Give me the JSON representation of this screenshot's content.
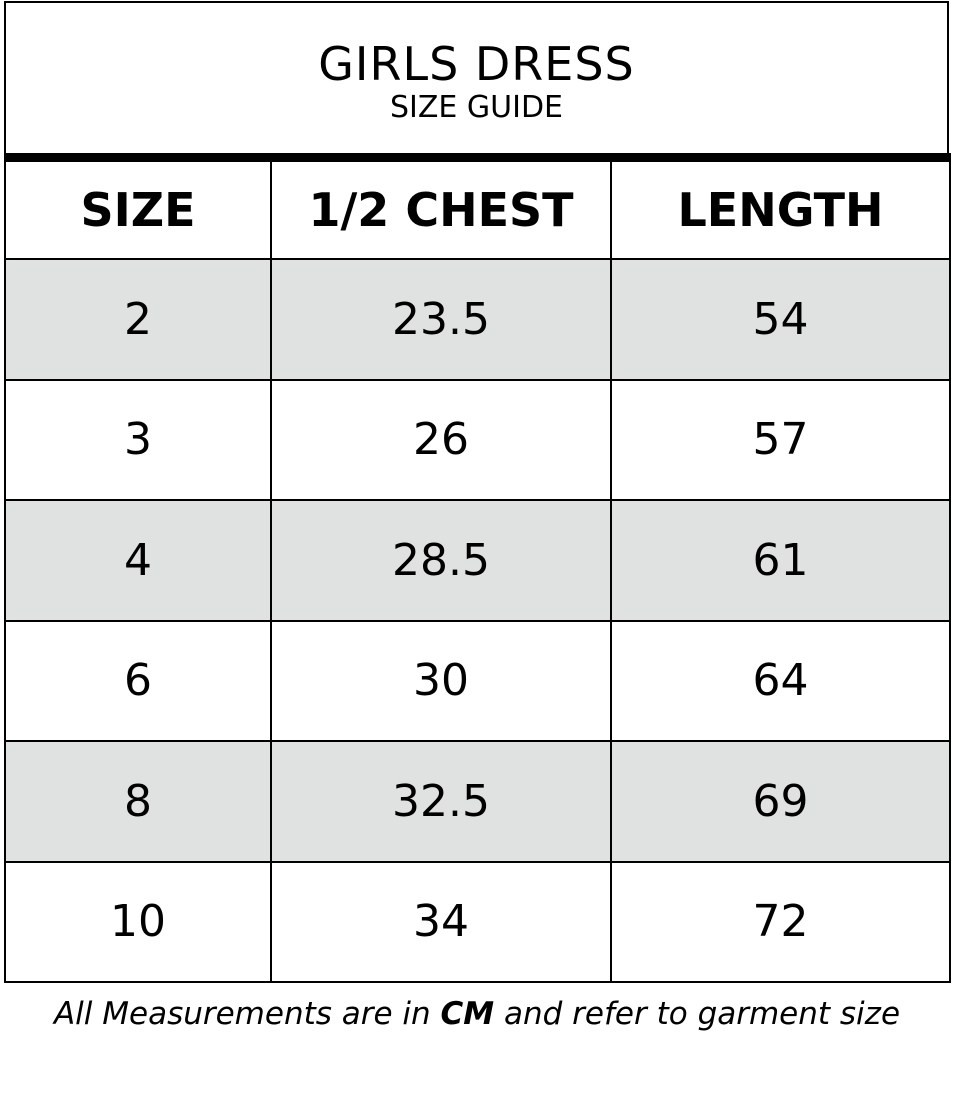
{
  "header": {
    "title": "GIRLS DRESS",
    "subtitle": "SIZE GUIDE"
  },
  "table": {
    "columns": [
      "SIZE",
      "1/2 CHEST",
      "LENGTH"
    ],
    "rows": [
      [
        "2",
        "23.5",
        "54"
      ],
      [
        "3",
        "26",
        "57"
      ],
      [
        "4",
        "28.5",
        "61"
      ],
      [
        "6",
        "30",
        "64"
      ],
      [
        "8",
        "32.5",
        "69"
      ],
      [
        "10",
        "34",
        "72"
      ]
    ],
    "shade_color": "#e0e2e1"
  },
  "footer": {
    "pre": "All Measurements are in ",
    "unit": "CM",
    "post": " and refer to garment size"
  }
}
